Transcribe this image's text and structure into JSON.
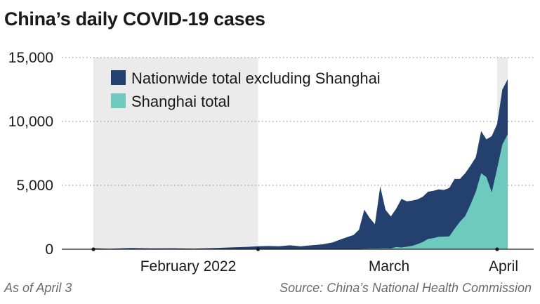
{
  "chart_data": {
    "type": "area",
    "title": "China’s daily COVID-19 cases",
    "xlabel": "",
    "ylabel": "",
    "ylim": [
      0,
      15000
    ],
    "yticks": [
      0,
      5000,
      10000,
      15000
    ],
    "ytick_labels": [
      "0",
      "5,000",
      "10,000",
      "15,000"
    ],
    "xtick_labels": [
      {
        "label": "February 2022",
        "date": "2022-02-01"
      },
      {
        "label": "March",
        "date": "2022-03-01"
      },
      {
        "label": "April",
        "date": "2022-04-01"
      }
    ],
    "grid": "horizontal-dotted",
    "legend_placement": "top-left",
    "stacked": true,
    "shaded_periods": [
      {
        "start": "2022-01-15",
        "end": "2022-02-15"
      },
      {
        "start": "2022-04-01",
        "end": "2022-04-03"
      }
    ],
    "series": [
      {
        "name": "Nationwide total excluding Shanghai",
        "color": "#23406e",
        "points": [
          [
            "2022-01-15",
            80
          ],
          [
            "2022-01-18",
            40
          ],
          [
            "2022-01-22",
            90
          ],
          [
            "2022-01-26",
            60
          ],
          [
            "2022-01-30",
            70
          ],
          [
            "2022-02-03",
            50
          ],
          [
            "2022-02-07",
            90
          ],
          [
            "2022-02-10",
            140
          ],
          [
            "2022-02-13",
            180
          ],
          [
            "2022-02-15",
            230
          ],
          [
            "2022-02-17",
            250
          ],
          [
            "2022-02-19",
            230
          ],
          [
            "2022-02-21",
            300
          ],
          [
            "2022-02-23",
            220
          ],
          [
            "2022-02-25",
            300
          ],
          [
            "2022-02-27",
            370
          ],
          [
            "2022-03-01",
            520
          ],
          [
            "2022-03-03",
            830
          ],
          [
            "2022-03-05",
            1100
          ],
          [
            "2022-03-06",
            1500
          ],
          [
            "2022-03-07",
            3050
          ],
          [
            "2022-03-08",
            2400
          ],
          [
            "2022-03-09",
            1900
          ],
          [
            "2022-03-10",
            4850
          ],
          [
            "2022-03-11",
            3000
          ],
          [
            "2022-03-12",
            2500
          ],
          [
            "2022-03-13",
            3000
          ],
          [
            "2022-03-14",
            3800
          ],
          [
            "2022-03-15",
            3550
          ],
          [
            "2022-03-16",
            3550
          ],
          [
            "2022-03-17",
            3500
          ],
          [
            "2022-03-18",
            3550
          ],
          [
            "2022-03-19",
            3700
          ],
          [
            "2022-03-20",
            3700
          ],
          [
            "2022-03-21",
            3700
          ],
          [
            "2022-03-22",
            3650
          ],
          [
            "2022-03-23",
            3800
          ],
          [
            "2022-03-24",
            3900
          ],
          [
            "2022-03-25",
            3350
          ],
          [
            "2022-03-26",
            3350
          ],
          [
            "2022-03-27",
            3050
          ],
          [
            "2022-03-28",
            2700
          ],
          [
            "2022-03-29",
            3300
          ],
          [
            "2022-03-30",
            2950
          ],
          [
            "2022-03-31",
            4400
          ],
          [
            "2022-04-01",
            3500
          ],
          [
            "2022-04-02",
            4300
          ],
          [
            "2022-04-03",
            4300
          ]
        ]
      },
      {
        "name": "Shanghai total",
        "color": "#6ec9bf",
        "points": [
          [
            "2022-01-15",
            0
          ],
          [
            "2022-01-22",
            5
          ],
          [
            "2022-01-30",
            5
          ],
          [
            "2022-02-07",
            5
          ],
          [
            "2022-02-15",
            5
          ],
          [
            "2022-02-21",
            5
          ],
          [
            "2022-02-27",
            10
          ],
          [
            "2022-03-01",
            10
          ],
          [
            "2022-03-03",
            10
          ],
          [
            "2022-03-05",
            20
          ],
          [
            "2022-03-06",
            30
          ],
          [
            "2022-03-07",
            50
          ],
          [
            "2022-03-08",
            60
          ],
          [
            "2022-03-09",
            60
          ],
          [
            "2022-03-10",
            70
          ],
          [
            "2022-03-11",
            80
          ],
          [
            "2022-03-12",
            70
          ],
          [
            "2022-03-13",
            170
          ],
          [
            "2022-03-14",
            140
          ],
          [
            "2022-03-15",
            200
          ],
          [
            "2022-03-16",
            260
          ],
          [
            "2022-03-17",
            400
          ],
          [
            "2022-03-18",
            560
          ],
          [
            "2022-03-19",
            800
          ],
          [
            "2022-03-20",
            870
          ],
          [
            "2022-03-21",
            980
          ],
          [
            "2022-03-22",
            990
          ],
          [
            "2022-03-23",
            1000
          ],
          [
            "2022-03-24",
            1600
          ],
          [
            "2022-03-25",
            2150
          ],
          [
            "2022-03-26",
            2600
          ],
          [
            "2022-03-27",
            3500
          ],
          [
            "2022-03-28",
            4500
          ],
          [
            "2022-03-29",
            5950
          ],
          [
            "2022-03-30",
            5650
          ],
          [
            "2022-03-31",
            4450
          ],
          [
            "2022-04-01",
            6300
          ],
          [
            "2022-04-02",
            8200
          ],
          [
            "2022-04-03",
            9000
          ]
        ]
      }
    ]
  },
  "footer": {
    "left": "As of April 3",
    "right": "Source: China’s National Health Commission"
  }
}
